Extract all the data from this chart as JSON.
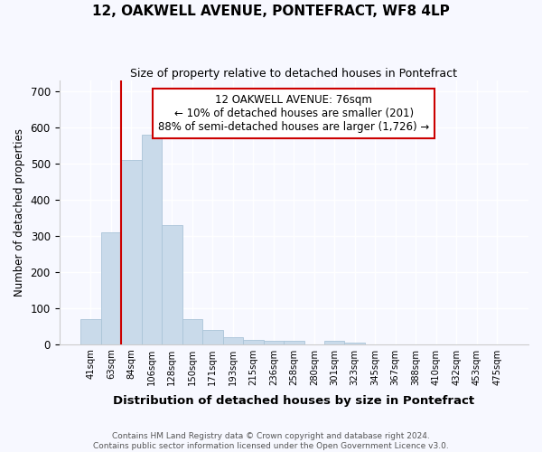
{
  "title": "12, OAKWELL AVENUE, PONTEFRACT, WF8 4LP",
  "subtitle": "Size of property relative to detached houses in Pontefract",
  "xlabel": "Distribution of detached houses by size in Pontefract",
  "ylabel": "Number of detached properties",
  "bar_color": "#c9daea",
  "bar_edge_color": "#aac4d8",
  "annotation_line_color": "#cc0000",
  "annotation_box_text": "12 OAKWELL AVENUE: 76sqm\n← 10% of detached houses are smaller (201)\n88% of semi-detached houses are larger (1,726) →",
  "property_sqm": 76,
  "bin_labels": [
    "41sqm",
    "63sqm",
    "84sqm",
    "106sqm",
    "128sqm",
    "150sqm",
    "171sqm",
    "193sqm",
    "215sqm",
    "236sqm",
    "258sqm",
    "280sqm",
    "301sqm",
    "323sqm",
    "345sqm",
    "367sqm",
    "388sqm",
    "410sqm",
    "432sqm",
    "453sqm",
    "475sqm"
  ],
  "bar_heights": [
    70,
    310,
    510,
    580,
    330,
    70,
    40,
    20,
    12,
    10,
    10,
    0,
    10,
    5,
    0,
    0,
    0,
    0,
    0,
    0,
    0
  ],
  "ylim": [
    0,
    730
  ],
  "yticks": [
    0,
    100,
    200,
    300,
    400,
    500,
    600,
    700
  ],
  "footer_text": "Contains HM Land Registry data © Crown copyright and database right 2024.\nContains public sector information licensed under the Open Government Licence v3.0.",
  "background_color": "#f7f8ff",
  "plot_background": "#f7f8ff",
  "grid_color": "#ffffff",
  "title_fontsize": 11,
  "subtitle_fontsize": 9
}
